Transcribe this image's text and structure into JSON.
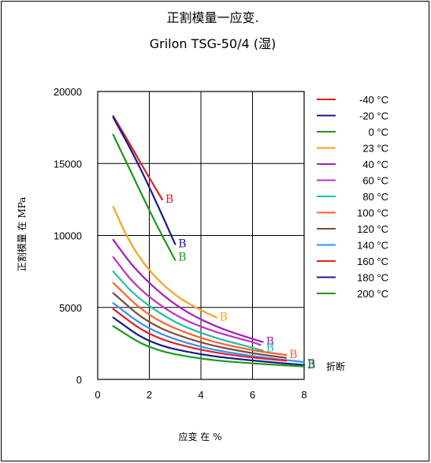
{
  "chart_data": {
    "type": "line",
    "title": "正割模量一应变.",
    "subtitle": "Grilon TSG-50/4 (湿)",
    "xlabel": "应变 在 %",
    "ylabel": "正割模量 在  MPa",
    "xlim": [
      0,
      8
    ],
    "ylim": [
      0,
      20000
    ],
    "x_ticks": [
      "0",
      "2",
      "4",
      "6",
      "8"
    ],
    "y_ticks": [
      "0",
      "5000",
      "10000",
      "15000",
      "20000"
    ],
    "grid": true,
    "legend_position": "right",
    "break_label": "B",
    "break_note": "折断",
    "series": [
      {
        "name": "-40 °C",
        "color": "#e02020",
        "x": [
          0.6,
          1.2,
          1.8,
          2.5
        ],
        "y": [
          18300,
          16500,
          14600,
          12500
        ],
        "break": true
      },
      {
        "name": "-20 °C",
        "color": "#1a1a8c",
        "x": [
          0.6,
          1.4,
          2.2,
          3.0
        ],
        "y": [
          18200,
          15600,
          12600,
          9400
        ],
        "break": true
      },
      {
        "name": "0 °C",
        "color": "#1a9a1a",
        "x": [
          0.6,
          1.4,
          2.2,
          3.0
        ],
        "y": [
          17000,
          14000,
          11000,
          8300
        ],
        "break": true
      },
      {
        "name": "23 °C",
        "color": "#ffa020",
        "x": [
          0.6,
          1.2,
          2.0,
          3.0,
          4.0,
          4.6
        ],
        "y": [
          12000,
          9600,
          7500,
          5800,
          4800,
          4300
        ],
        "break": true
      },
      {
        "name": "40 °C",
        "color": "#a020c0",
        "x": [
          0.6,
          1.5,
          3.0,
          4.5,
          6.0,
          6.4
        ],
        "y": [
          9700,
          7500,
          5100,
          3700,
          2800,
          2600
        ],
        "break": true
      },
      {
        "name": "60 °C",
        "color": "#c030c0",
        "x": [
          0.6,
          1.5,
          3.0,
          4.5,
          6.0,
          6.3
        ],
        "y": [
          8500,
          6400,
          4400,
          3300,
          2600,
          2400
        ],
        "break": false
      },
      {
        "name": "80 °C",
        "color": "#20c0a0",
        "x": [
          0.6,
          1.5,
          3.0,
          4.5,
          6.0,
          6.4
        ],
        "y": [
          7500,
          5700,
          3900,
          2900,
          2200,
          2000
        ],
        "break": true
      },
      {
        "name": "100 °C",
        "color": "#ff6030",
        "x": [
          0.6,
          2.0,
          4.0,
          6.0,
          7.3
        ],
        "y": [
          6700,
          4300,
          2800,
          2000,
          1700
        ],
        "break": true
      },
      {
        "name": "120 °C",
        "color": "#7a4a3a",
        "x": [
          0.6,
          2.0,
          4.0,
          6.0,
          7.3
        ],
        "y": [
          6000,
          3800,
          2500,
          1800,
          1500
        ],
        "break": false
      },
      {
        "name": "140 °C",
        "color": "#3090ff",
        "x": [
          0.6,
          2.0,
          4.0,
          6.0,
          8.0
        ],
        "y": [
          5300,
          3400,
          2200,
          1600,
          1200
        ],
        "break": false
      },
      {
        "name": "160 °C",
        "color": "#e02020",
        "x": [
          0.6,
          2.0,
          4.0,
          6.0,
          7.3
        ],
        "y": [
          4900,
          3000,
          2000,
          1500,
          1300
        ],
        "break": false
      },
      {
        "name": "180 °C",
        "color": "#1a1a8c",
        "x": [
          0.6,
          2.0,
          4.0,
          6.0,
          8.0
        ],
        "y": [
          4300,
          2500,
          1700,
          1300,
          1000
        ],
        "break": true
      },
      {
        "name": "200 °C",
        "color": "#1a9a1a",
        "x": [
          0.6,
          2.0,
          4.0,
          6.0,
          8.0
        ],
        "y": [
          3700,
          2100,
          1400,
          1100,
          900
        ],
        "break": true
      }
    ]
  }
}
